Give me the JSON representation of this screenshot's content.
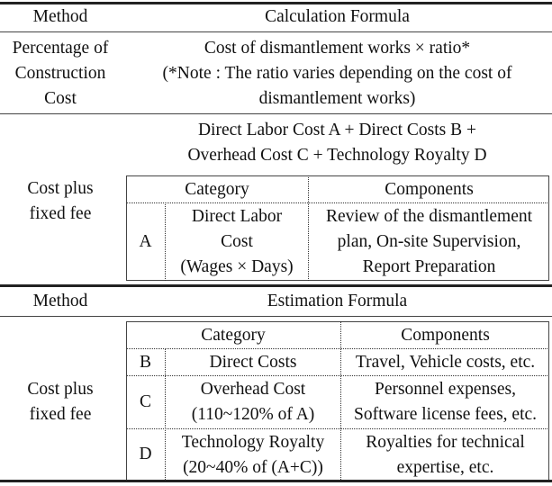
{
  "table1": {
    "header": {
      "method": "Method",
      "formula": "Calculation Formula"
    },
    "row1": {
      "method_lines": [
        "Percentage of",
        "Construction",
        "Cost"
      ],
      "formula_lines": [
        "Cost of dismantlement works × ratio*",
        "(*Note : The ratio varies depending on the cost of",
        "dismantlement works)"
      ]
    },
    "row2": {
      "method_lines": [
        "Cost plus",
        "fixed fee"
      ],
      "formula_lines": [
        "Direct Labor Cost A + Direct Costs B +",
        "Overhead Cost C + Technology Royalty D"
      ],
      "subtable": {
        "headers": {
          "category": "Category",
          "components": "Components"
        },
        "row": {
          "code": "A",
          "category_lines": [
            "Direct Labor",
            "Cost",
            "(Wages × Days)"
          ],
          "components_lines": [
            "Review of the dismantlement",
            "plan, On-site Supervision,",
            "Report Preparation"
          ]
        }
      }
    }
  },
  "table2": {
    "header": {
      "method": "Method",
      "formula": "Estimation Formula"
    },
    "row": {
      "method_lines": [
        "Cost plus",
        "fixed fee"
      ],
      "subtable": {
        "headers": {
          "category": "Category",
          "components": "Components"
        },
        "rows": [
          {
            "code": "B",
            "category_lines": [
              "Direct Costs"
            ],
            "components_lines": [
              "Travel, Vehicle costs, etc."
            ]
          },
          {
            "code": "C",
            "category_lines": [
              "Overhead Cost",
              "(110~120% of A)"
            ],
            "components_lines": [
              "Personnel expenses,",
              "Software license fees, etc."
            ]
          },
          {
            "code": "D",
            "category_lines": [
              "Technology Royalty",
              "(20~40% of (A+C))"
            ],
            "components_lines": [
              "Royalties for technical",
              "expertise, etc."
            ]
          }
        ]
      }
    }
  }
}
